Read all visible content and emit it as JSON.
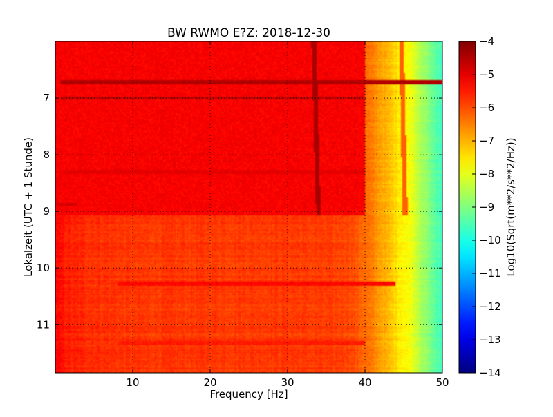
{
  "chart_data": {
    "type": "heatmap",
    "title": "BW RWMO E?Z: 2018-12-30",
    "xlabel": "Frequency [Hz]",
    "ylabel": "Lokalzeit (UTC + 1 Stunde)",
    "xlim": [
      0,
      50
    ],
    "ylim": [
      11.85,
      6.0
    ],
    "y_inverted": true,
    "grid": true,
    "x_ticks": [
      10,
      20,
      30,
      40,
      50
    ],
    "y_ticks": [
      7,
      8,
      9,
      10,
      11
    ],
    "colormap": "jet",
    "colorbar": {
      "label": "Log10(Sqrt(m**2/s**2/Hz))",
      "min": -14,
      "max": -4,
      "ticks": [
        -4,
        -5,
        -6,
        -7,
        -8,
        -9,
        -10,
        -11,
        -12,
        -13,
        -14
      ]
    },
    "spectrogram": {
      "background_level_by_frequency": [
        {
          "hz": 0,
          "level": -5.3
        },
        {
          "hz": 2,
          "level": -5.6
        },
        {
          "hz": 10,
          "level": -5.8
        },
        {
          "hz": 30,
          "level": -5.8
        },
        {
          "hz": 38,
          "level": -5.9
        },
        {
          "hz": 40,
          "level": -6.3
        },
        {
          "hz": 42,
          "level": -6.8
        },
        {
          "hz": 44,
          "level": -7.4
        },
        {
          "hz": 46,
          "level": -7.9
        },
        {
          "hz": 48,
          "level": -8.9
        },
        {
          "hz": 50,
          "level": -9.7
        }
      ],
      "elevated_block": {
        "time_from": 6.0,
        "time_to": 9.08,
        "hz_from": 0,
        "hz_to": 40,
        "level": -5.2
      },
      "tonal_line": {
        "hz_at_start": 33.4,
        "hz_at_end": 34.0,
        "time_from": 6.0,
        "time_to": 9.08,
        "level": -4.4
      },
      "tonal_line_2": {
        "hz_at_start": 44.7,
        "hz_at_end": 45.2,
        "time_from": 6.0,
        "time_to": 9.08,
        "level": -6.2
      },
      "broadband_bands": [
        {
          "time": 6.72,
          "hz_from": 0.8,
          "hz_to": 50,
          "level": -4.5
        },
        {
          "time": 7.0,
          "hz_from": 0.8,
          "hz_to": 40,
          "level": -4.7
        },
        {
          "time": 8.3,
          "hz_from": 1.0,
          "hz_to": 40,
          "level": -5.0
        },
        {
          "time": 8.88,
          "hz_from": 0.2,
          "hz_to": 2.8,
          "level": -4.8
        },
        {
          "time": 10.28,
          "hz_from": 8,
          "hz_to": 44,
          "level": -5.3
        },
        {
          "time": 11.33,
          "hz_from": 8,
          "hz_to": 40,
          "level": -5.5
        }
      ]
    }
  }
}
